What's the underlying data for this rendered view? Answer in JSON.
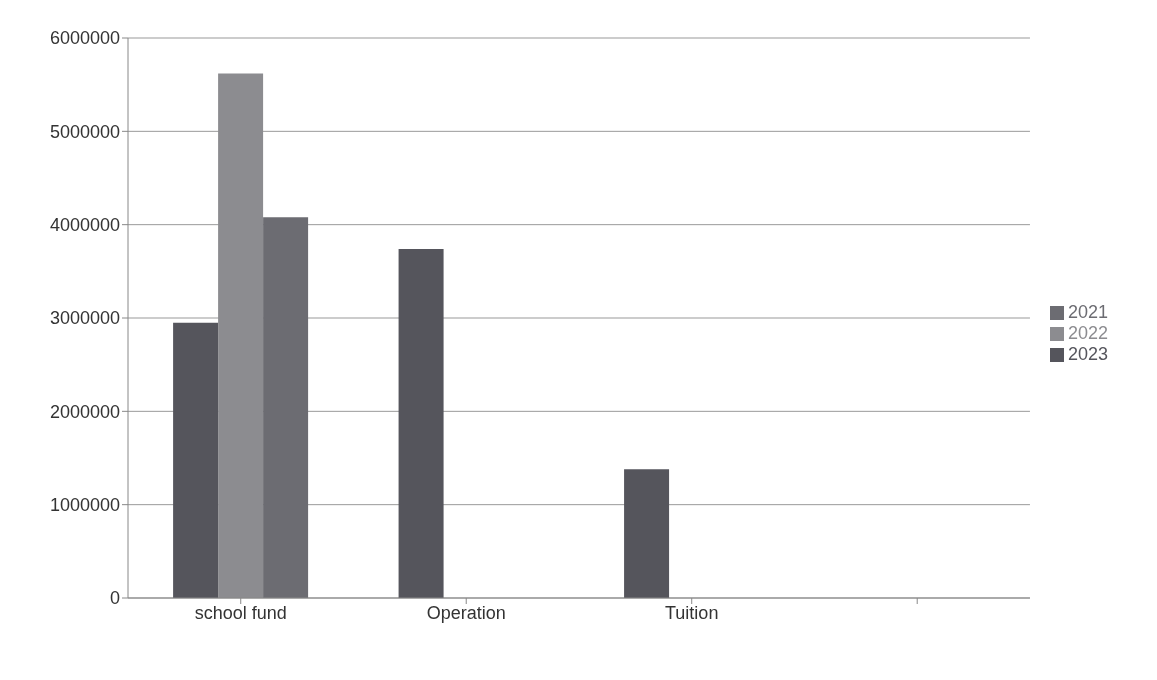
{
  "chart_data": {
    "type": "bar",
    "categories": [
      "school fund",
      "Operation",
      "Tuition",
      null
    ],
    "series": [
      {
        "name": "2023",
        "color": "#55555c",
        "values": [
          2950000,
          3740000,
          1380000,
          null
        ]
      },
      {
        "name": "2022",
        "color": "#8c8c90",
        "values": [
          5620000,
          null,
          null,
          null
        ]
      },
      {
        "name": "2021",
        "color": "#6c6c72",
        "values": [
          4080000,
          null,
          null,
          null
        ]
      }
    ],
    "ylim": [
      0,
      6000000
    ],
    "yticks": [
      0,
      1000000,
      2000000,
      3000000,
      4000000,
      5000000,
      6000000
    ],
    "grid": "y",
    "legend": "right"
  }
}
